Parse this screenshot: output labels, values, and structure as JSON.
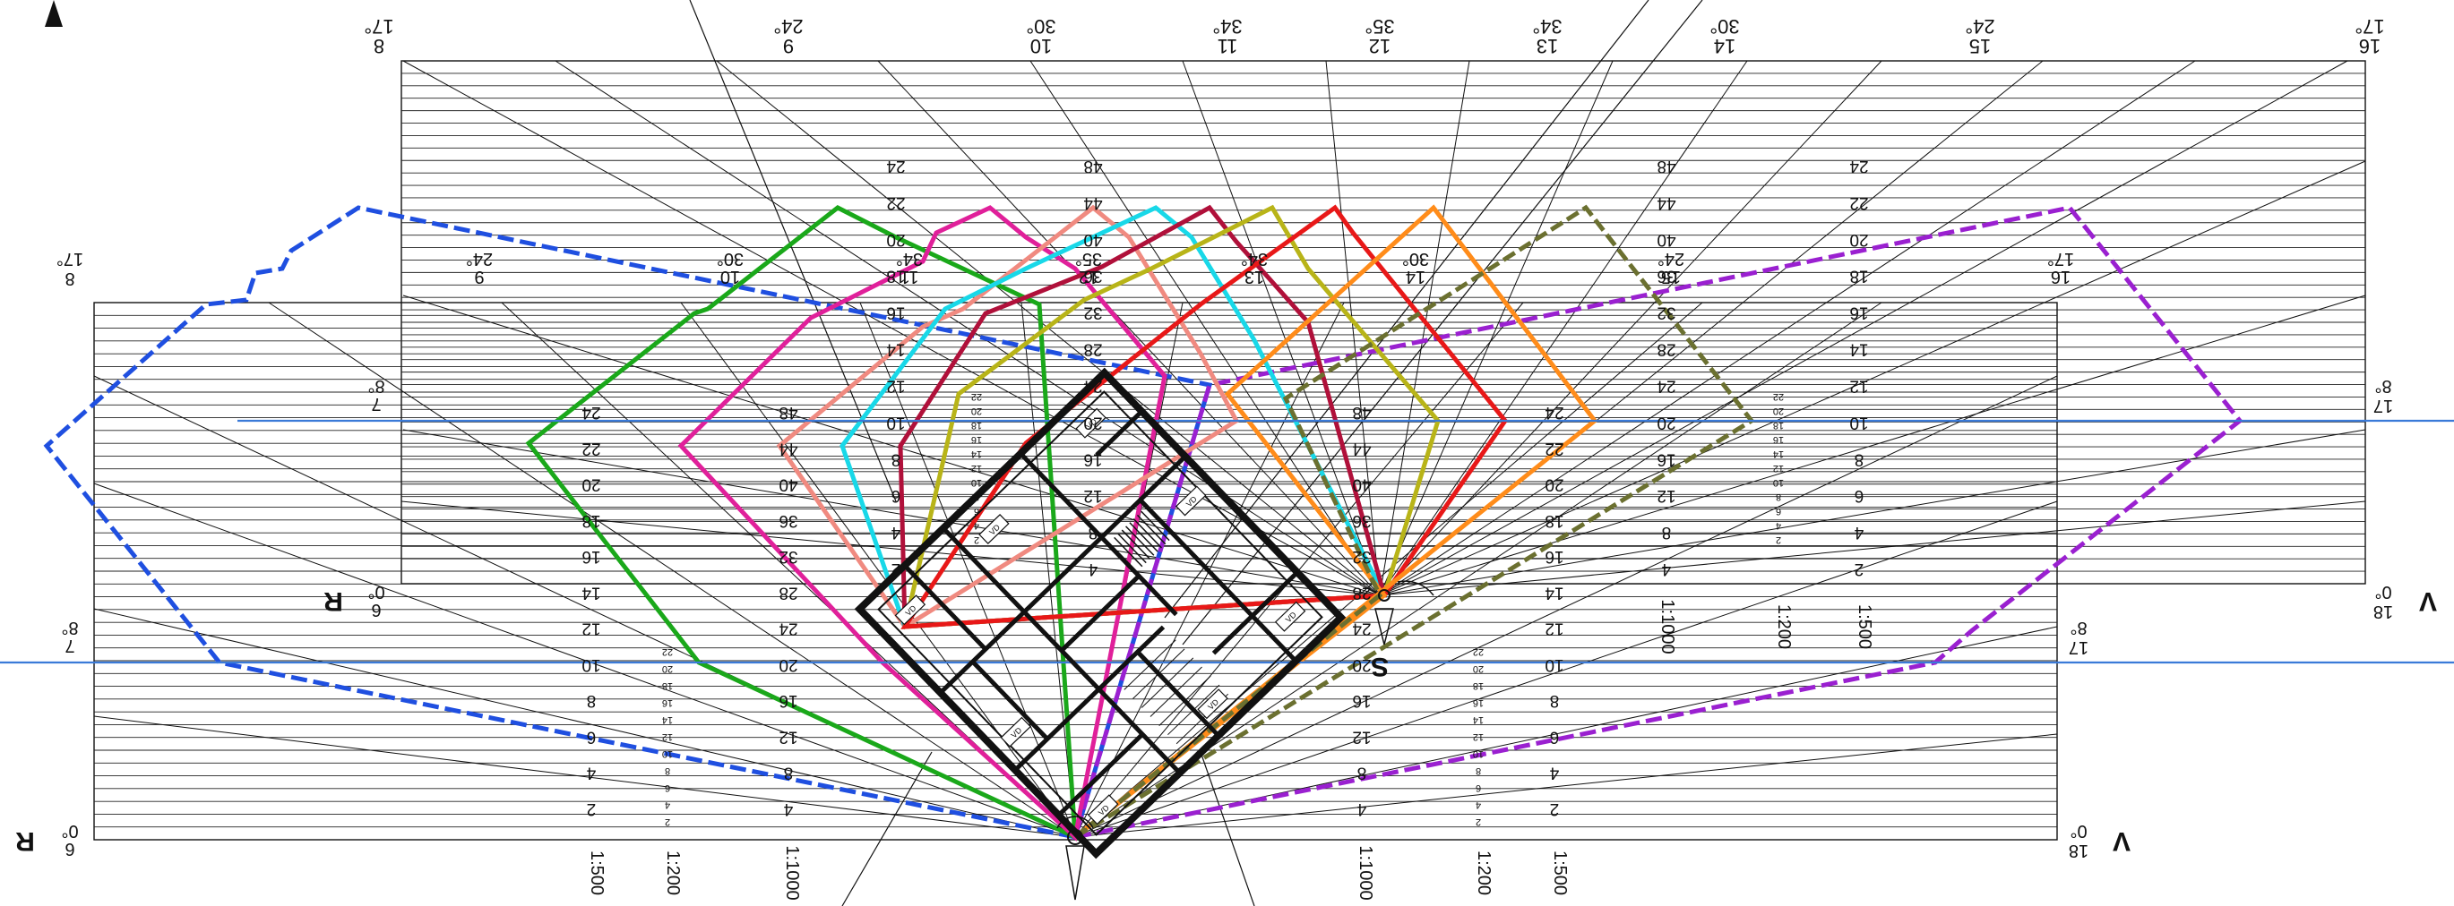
{
  "title": "",
  "top_ruler": [
    {
      "num": "8",
      "deg": "17°"
    },
    {
      "num": "9",
      "deg": "24°"
    },
    {
      "num": "10",
      "deg": "30°"
    },
    {
      "num": "11",
      "deg": "34°"
    },
    {
      "num": "12",
      "deg": "35°"
    },
    {
      "num": "13",
      "deg": "34°"
    },
    {
      "num": "14",
      "deg": "30°"
    },
    {
      "num": "15",
      "deg": "24°"
    },
    {
      "num": "16",
      "deg": "17°"
    }
  ],
  "upper_ruler": [
    {
      "num": "9",
      "deg": "24°"
    },
    {
      "num": "10",
      "deg": "30°"
    },
    {
      "num": "11",
      "deg": "34°"
    },
    {
      "num": "12",
      "deg": "35°"
    },
    {
      "num": "13",
      "deg": "34°"
    },
    {
      "num": "14",
      "deg": "30°"
    },
    {
      "num": "15",
      "deg": "24°"
    },
    {
      "num": "16",
      "deg": "17°"
    }
  ],
  "side_labels": {
    "left_top": {
      "num": "8",
      "deg": "17°"
    },
    "left_mid1": {
      "num": "7",
      "deg": "8°"
    },
    "left_mid2": {
      "num": "7",
      "deg": "8°"
    },
    "left_r_upper": {
      "num": "6",
      "deg": "0°",
      "letter": "R"
    },
    "left_r_lower": {
      "num": "6",
      "deg": "0°",
      "letter": "R"
    },
    "right_top": {
      "num": "17",
      "deg": "8°"
    },
    "right_mid": {
      "num": "17",
      "deg": "8°"
    },
    "right_v_upper": {
      "num": "18",
      "deg": "0°",
      "letter": "V"
    },
    "right_v_lower": {
      "num": "18",
      "deg": "0°",
      "letter": "V"
    }
  },
  "scale_labels": [
    "1:500",
    "1:200",
    "1:1000",
    "1:1000",
    "1:200",
    "1:500"
  ],
  "scale_labels_upper": [
    "1:1000",
    "1:200",
    "1:500"
  ],
  "height_scale_left": [
    "2",
    "4",
    "6",
    "8",
    "10",
    "12",
    "14",
    "16",
    "18",
    "20",
    "22",
    "24"
  ],
  "height_scale_mid": [
    "4",
    "8",
    "12",
    "16",
    "20",
    "24",
    "28",
    "32",
    "36",
    "40",
    "44",
    "48"
  ],
  "height_scale_small": [
    "2",
    "4",
    "6",
    "8",
    "10",
    "12",
    "14",
    "16",
    "18",
    "20",
    "22",
    "24",
    "26",
    "28",
    "30",
    "32",
    "34",
    "36",
    "38",
    "40"
  ],
  "marker_s_label": "S",
  "room_tags": [
    "VD",
    "VD",
    "VD",
    "VD",
    "VD",
    "VD",
    "VD",
    "VD"
  ],
  "colors": {
    "blue_dashed": "#1f4fe0",
    "green": "#1aa81a",
    "magenta": "#e0209a",
    "salmon": "#f08a80",
    "cyan": "#18d8e8",
    "crimson": "#b0103a",
    "olive_yellow": "#b8b418",
    "red": "#e81818",
    "orange": "#ff8c1a",
    "olive_dark": "#6b7030",
    "purple_dashed": "#9a20d0",
    "horizon_blue": "#3a7ad8"
  }
}
